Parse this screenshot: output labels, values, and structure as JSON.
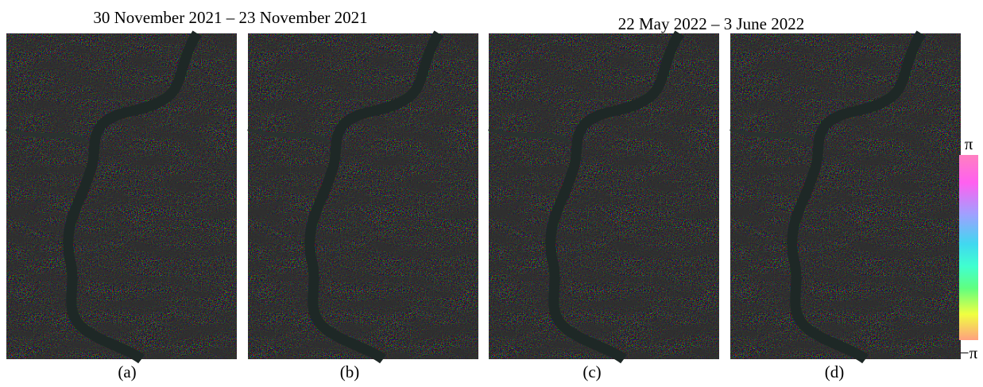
{
  "titles": [
    "30 November 2021 – 23 November 2021",
    "22 May 2022 – 3 June 2022"
  ],
  "panels": [
    "(a)",
    "(b)",
    "(c)",
    "(d)"
  ],
  "colorbar": {
    "max_label": "π",
    "min_label": "−π"
  }
}
